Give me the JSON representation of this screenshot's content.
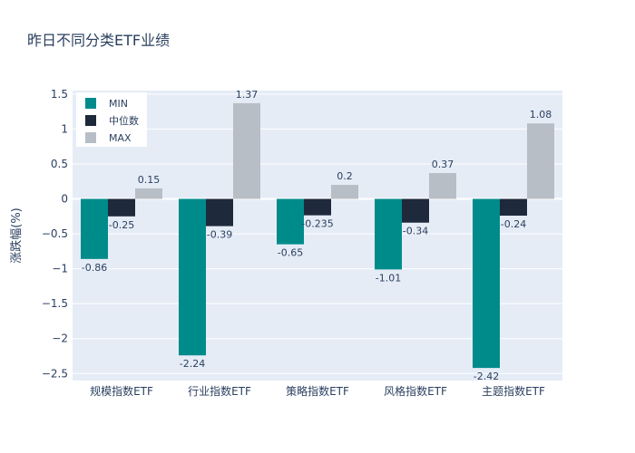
{
  "chart_data": {
    "type": "bar",
    "title": "昨日不同分类ETF业绩",
    "xlabel": "",
    "ylabel": "涨跌幅(%)",
    "categories": [
      "规模指数ETF",
      "行业指数ETF",
      "策略指数ETF",
      "风格指数ETF",
      "主题指数ETF"
    ],
    "series": [
      {
        "name": "MIN",
        "values": [
          -0.86,
          -2.24,
          -0.65,
          -1.01,
          -2.42
        ],
        "labels": [
          "-0.86",
          "-2.24",
          "-0.65",
          "-1.01",
          "-2.42"
        ],
        "color": "#008b8b"
      },
      {
        "name": "中位数",
        "values": [
          -0.25,
          -0.39,
          -0.235,
          -0.34,
          -0.24
        ],
        "labels": [
          "-0.25",
          "-0.39",
          "-0.235",
          "-0.34",
          "-0.24"
        ],
        "color": "#1e293b"
      },
      {
        "name": "MAX",
        "values": [
          0.15,
          1.37,
          0.2,
          0.37,
          1.08
        ],
        "labels": [
          "0.15",
          "1.37",
          "0.2",
          "0.37",
          "1.08"
        ],
        "color": "#b8bec6"
      }
    ],
    "ylim": [
      -2.6,
      1.55
    ],
    "yticks": [
      1.5,
      1,
      0.5,
      0,
      -0.5,
      -1,
      -1.5,
      -2,
      -2.5
    ],
    "ytick_labels": [
      "1.5",
      "1",
      "0.5",
      "0",
      "−0.5",
      "−1",
      "−1.5",
      "−2",
      "−2.5"
    ],
    "grid": true,
    "legend_position": "top-left",
    "plot_bg": "#e5ecf6"
  }
}
